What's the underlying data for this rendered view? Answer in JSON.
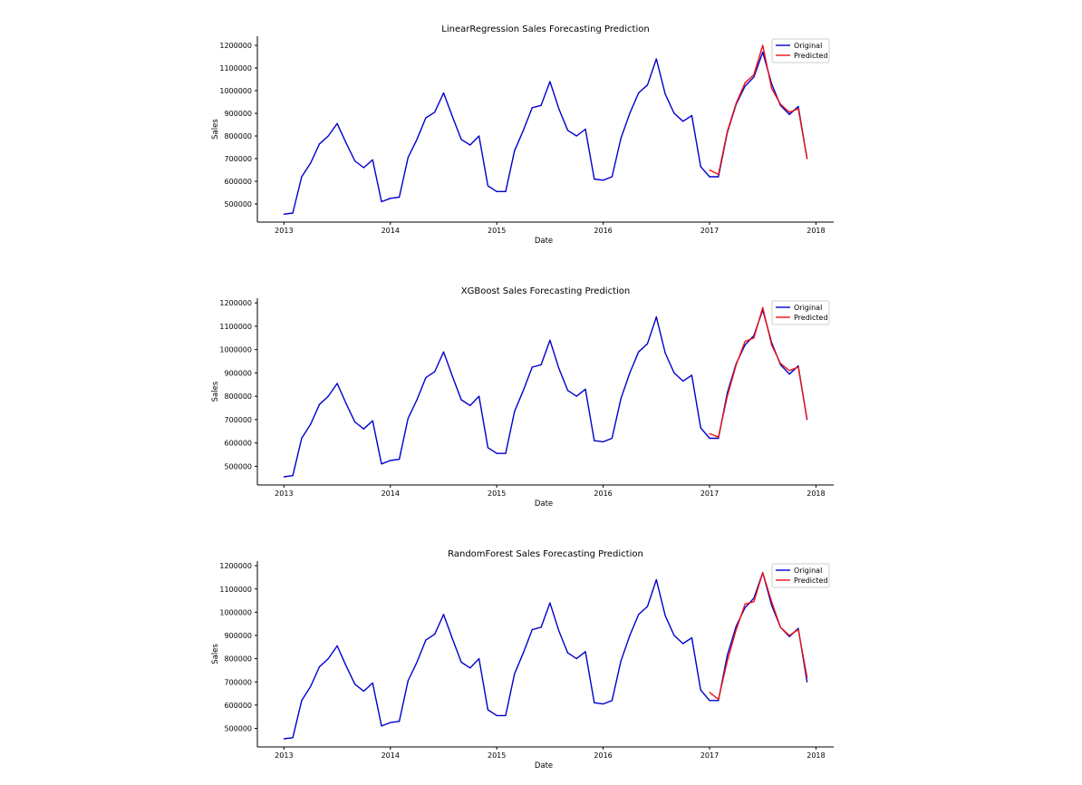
{
  "colors": {
    "original": "#0000cc",
    "predicted": "#ee1111",
    "axis": "#000000",
    "legend_border": "#cccccc"
  },
  "chart_data": [
    {
      "type": "line",
      "title": "LinearRegression Sales Forecasting Prediction",
      "xlabel": "Date",
      "ylabel": "Sales",
      "xlim": [
        "2012-10-01",
        "2018-03-01"
      ],
      "ylim": [
        420000,
        1240000
      ],
      "xticks": [
        "2013",
        "2014",
        "2015",
        "2016",
        "2017",
        "2018"
      ],
      "yticks": [
        500000,
        600000,
        700000,
        800000,
        900000,
        1000000,
        1100000,
        1200000
      ],
      "grid": false,
      "legend_position": "top-right",
      "series": [
        {
          "name": "Original",
          "x": [
            "2013-01",
            "2013-02",
            "2013-03",
            "2013-04",
            "2013-05",
            "2013-06",
            "2013-07",
            "2013-08",
            "2013-09",
            "2013-10",
            "2013-11",
            "2013-12",
            "2014-01",
            "2014-02",
            "2014-03",
            "2014-04",
            "2014-05",
            "2014-06",
            "2014-07",
            "2014-08",
            "2014-09",
            "2014-10",
            "2014-11",
            "2014-12",
            "2015-01",
            "2015-02",
            "2015-03",
            "2015-04",
            "2015-05",
            "2015-06",
            "2015-07",
            "2015-08",
            "2015-09",
            "2015-10",
            "2015-11",
            "2015-12",
            "2016-01",
            "2016-02",
            "2016-03",
            "2016-04",
            "2016-05",
            "2016-06",
            "2016-07",
            "2016-08",
            "2016-09",
            "2016-10",
            "2016-11",
            "2016-12",
            "2017-01",
            "2017-02",
            "2017-03",
            "2017-04",
            "2017-05",
            "2017-06",
            "2017-07",
            "2017-08",
            "2017-09",
            "2017-10",
            "2017-11",
            "2017-12"
          ],
          "values": [
            455000,
            460000,
            620000,
            680000,
            765000,
            800000,
            855000,
            770000,
            690000,
            660000,
            695000,
            510000,
            525000,
            530000,
            705000,
            785000,
            880000,
            905000,
            990000,
            885000,
            785000,
            760000,
            800000,
            580000,
            555000,
            555000,
            735000,
            825000,
            925000,
            935000,
            1040000,
            920000,
            825000,
            800000,
            830000,
            610000,
            605000,
            620000,
            790000,
            900000,
            990000,
            1025000,
            1140000,
            985000,
            900000,
            865000,
            890000,
            665000,
            620000,
            620000,
            815000,
            940000,
            1020000,
            1060000,
            1170000,
            1030000,
            935000,
            895000,
            930000,
            700000
          ]
        },
        {
          "name": "Predicted",
          "x": [
            "2017-01",
            "2017-02",
            "2017-03",
            "2017-04",
            "2017-05",
            "2017-06",
            "2017-07",
            "2017-08",
            "2017-09",
            "2017-10",
            "2017-11",
            "2017-12"
          ],
          "values": [
            650000,
            630000,
            820000,
            945000,
            1035000,
            1070000,
            1200000,
            1010000,
            940000,
            905000,
            920000,
            700000
          ]
        }
      ]
    },
    {
      "type": "line",
      "title": "XGBoost Sales Forecasting Prediction",
      "xlabel": "Date",
      "ylabel": "Sales",
      "xlim": [
        "2012-10-01",
        "2018-03-01"
      ],
      "ylim": [
        420000,
        1220000
      ],
      "xticks": [
        "2013",
        "2014",
        "2015",
        "2016",
        "2017",
        "2018"
      ],
      "yticks": [
        500000,
        600000,
        700000,
        800000,
        900000,
        1000000,
        1100000,
        1200000
      ],
      "grid": false,
      "legend_position": "top-right",
      "series": [
        {
          "name": "Original",
          "x": [
            "2013-01",
            "2013-02",
            "2013-03",
            "2013-04",
            "2013-05",
            "2013-06",
            "2013-07",
            "2013-08",
            "2013-09",
            "2013-10",
            "2013-11",
            "2013-12",
            "2014-01",
            "2014-02",
            "2014-03",
            "2014-04",
            "2014-05",
            "2014-06",
            "2014-07",
            "2014-08",
            "2014-09",
            "2014-10",
            "2014-11",
            "2014-12",
            "2015-01",
            "2015-02",
            "2015-03",
            "2015-04",
            "2015-05",
            "2015-06",
            "2015-07",
            "2015-08",
            "2015-09",
            "2015-10",
            "2015-11",
            "2015-12",
            "2016-01",
            "2016-02",
            "2016-03",
            "2016-04",
            "2016-05",
            "2016-06",
            "2016-07",
            "2016-08",
            "2016-09",
            "2016-10",
            "2016-11",
            "2016-12",
            "2017-01",
            "2017-02",
            "2017-03",
            "2017-04",
            "2017-05",
            "2017-06",
            "2017-07",
            "2017-08",
            "2017-09",
            "2017-10",
            "2017-11",
            "2017-12"
          ],
          "values": [
            455000,
            460000,
            620000,
            680000,
            765000,
            800000,
            855000,
            770000,
            690000,
            660000,
            695000,
            510000,
            525000,
            530000,
            705000,
            785000,
            880000,
            905000,
            990000,
            885000,
            785000,
            760000,
            800000,
            580000,
            555000,
            555000,
            735000,
            825000,
            925000,
            935000,
            1040000,
            920000,
            825000,
            800000,
            830000,
            610000,
            605000,
            620000,
            790000,
            900000,
            990000,
            1025000,
            1140000,
            985000,
            900000,
            865000,
            890000,
            665000,
            620000,
            620000,
            815000,
            940000,
            1020000,
            1060000,
            1170000,
            1030000,
            935000,
            895000,
            930000,
            700000
          ]
        },
        {
          "name": "Predicted",
          "x": [
            "2017-01",
            "2017-02",
            "2017-03",
            "2017-04",
            "2017-05",
            "2017-06",
            "2017-07",
            "2017-08",
            "2017-09",
            "2017-10",
            "2017-11",
            "2017-12"
          ],
          "values": [
            640000,
            625000,
            800000,
            935000,
            1035000,
            1050000,
            1180000,
            1020000,
            940000,
            910000,
            925000,
            700000
          ]
        }
      ]
    },
    {
      "type": "line",
      "title": "RandomForest Sales Forecasting Prediction",
      "xlabel": "Date",
      "ylabel": "Sales",
      "xlim": [
        "2012-10-01",
        "2018-03-01"
      ],
      "ylim": [
        420000,
        1220000
      ],
      "xticks": [
        "2013",
        "2014",
        "2015",
        "2016",
        "2017",
        "2018"
      ],
      "yticks": [
        500000,
        600000,
        700000,
        800000,
        900000,
        1000000,
        1100000,
        1200000
      ],
      "grid": false,
      "legend_position": "top-right",
      "series": [
        {
          "name": "Original",
          "x": [
            "2013-01",
            "2013-02",
            "2013-03",
            "2013-04",
            "2013-05",
            "2013-06",
            "2013-07",
            "2013-08",
            "2013-09",
            "2013-10",
            "2013-11",
            "2013-12",
            "2014-01",
            "2014-02",
            "2014-03",
            "2014-04",
            "2014-05",
            "2014-06",
            "2014-07",
            "2014-08",
            "2014-09",
            "2014-10",
            "2014-11",
            "2014-12",
            "2015-01",
            "2015-02",
            "2015-03",
            "2015-04",
            "2015-05",
            "2015-06",
            "2015-07",
            "2015-08",
            "2015-09",
            "2015-10",
            "2015-11",
            "2015-12",
            "2016-01",
            "2016-02",
            "2016-03",
            "2016-04",
            "2016-05",
            "2016-06",
            "2016-07",
            "2016-08",
            "2016-09",
            "2016-10",
            "2016-11",
            "2016-12",
            "2017-01",
            "2017-02",
            "2017-03",
            "2017-04",
            "2017-05",
            "2017-06",
            "2017-07",
            "2017-08",
            "2017-09",
            "2017-10",
            "2017-11",
            "2017-12"
          ],
          "values": [
            455000,
            460000,
            620000,
            680000,
            765000,
            800000,
            855000,
            770000,
            690000,
            660000,
            695000,
            510000,
            525000,
            530000,
            705000,
            785000,
            880000,
            905000,
            990000,
            885000,
            785000,
            760000,
            800000,
            580000,
            555000,
            555000,
            735000,
            825000,
            925000,
            935000,
            1040000,
            920000,
            825000,
            800000,
            830000,
            610000,
            605000,
            620000,
            790000,
            900000,
            990000,
            1025000,
            1140000,
            985000,
            900000,
            865000,
            890000,
            665000,
            620000,
            620000,
            815000,
            940000,
            1020000,
            1060000,
            1170000,
            1030000,
            935000,
            895000,
            930000,
            700000
          ]
        },
        {
          "name": "Predicted",
          "x": [
            "2017-01",
            "2017-02",
            "2017-03",
            "2017-04",
            "2017-05",
            "2017-06",
            "2017-07",
            "2017-08",
            "2017-09",
            "2017-10",
            "2017-11",
            "2017-12"
          ],
          "values": [
            655000,
            625000,
            790000,
            925000,
            1035000,
            1045000,
            1170000,
            1045000,
            935000,
            900000,
            925000,
            720000
          ]
        }
      ]
    }
  ]
}
